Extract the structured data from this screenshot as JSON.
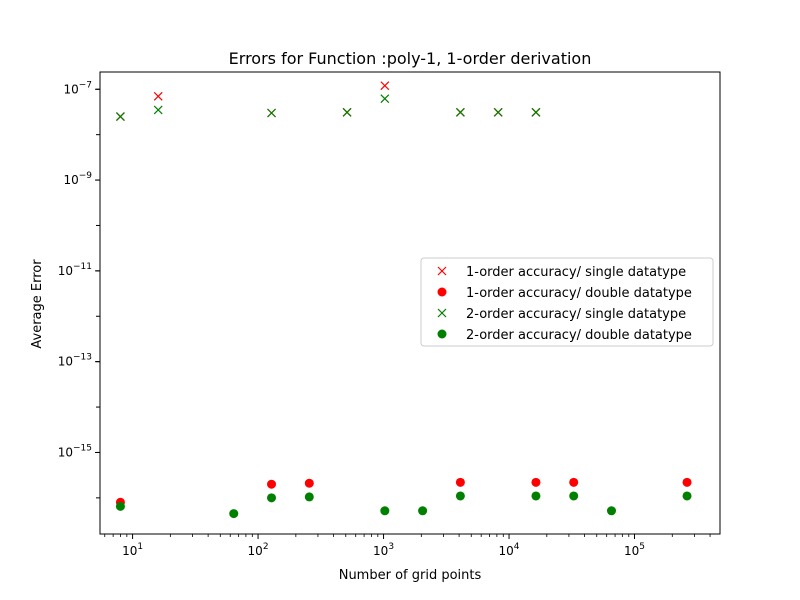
{
  "chart_data": {
    "type": "scatter",
    "title": "Errors for Function :poly-1, 1-order derivation",
    "xlabel": "Number of grid points",
    "ylabel": "Average Error",
    "xscale": "log",
    "yscale": "log",
    "xlim": [
      5.5,
      480000
    ],
    "ylim": [
      1.6e-17,
      2.4e-07
    ],
    "xticks": [
      {
        "value": 10,
        "base": "10",
        "exp": "1"
      },
      {
        "value": 100,
        "base": "10",
        "exp": "2"
      },
      {
        "value": 1000,
        "base": "10",
        "exp": "3"
      },
      {
        "value": 10000,
        "base": "10",
        "exp": "4"
      },
      {
        "value": 100000,
        "base": "10",
        "exp": "5"
      }
    ],
    "yticks": [
      {
        "value": 1e-15,
        "base": "10",
        "exp": "−15"
      },
      {
        "value": 1e-13,
        "base": "10",
        "exp": "−13"
      },
      {
        "value": 1e-11,
        "base": "10",
        "exp": "−11"
      },
      {
        "value": 1e-09,
        "base": "10",
        "exp": "−9"
      },
      {
        "value": 1e-07,
        "base": "10",
        "exp": "−7"
      }
    ],
    "grid": false,
    "legend_position": "center-right",
    "series": [
      {
        "name": "1-order accuracy/ single datatype",
        "marker": "x",
        "color": "#ff0000",
        "points": [
          {
            "x": 8,
            "y": 2.5e-08
          },
          {
            "x": 16,
            "y": 7e-08
          },
          {
            "x": 128,
            "y": 3e-08
          },
          {
            "x": 512,
            "y": 3.1e-08
          },
          {
            "x": 1024,
            "y": 1.2e-07
          },
          {
            "x": 4096,
            "y": 3.1e-08
          },
          {
            "x": 8192,
            "y": 3.1e-08
          },
          {
            "x": 16384,
            "y": 3.1e-08
          }
        ]
      },
      {
        "name": "1-order accuracy/ double datatype",
        "marker": "o",
        "color": "#ff0000",
        "points": [
          {
            "x": 8,
            "y": 8e-17
          },
          {
            "x": 128,
            "y": 2e-16
          },
          {
            "x": 256,
            "y": 2.1e-16
          },
          {
            "x": 4096,
            "y": 2.2e-16
          },
          {
            "x": 16384,
            "y": 2.2e-16
          },
          {
            "x": 32768,
            "y": 2.2e-16
          },
          {
            "x": 262144,
            "y": 2.2e-16
          }
        ]
      },
      {
        "name": "2-order accuracy/ single datatype",
        "marker": "x",
        "color": "#008000",
        "points": [
          {
            "x": 8,
            "y": 2.5e-08
          },
          {
            "x": 16,
            "y": 3.5e-08
          },
          {
            "x": 128,
            "y": 3e-08
          },
          {
            "x": 512,
            "y": 3.1e-08
          },
          {
            "x": 1024,
            "y": 6.2e-08
          },
          {
            "x": 4096,
            "y": 3.1e-08
          },
          {
            "x": 8192,
            "y": 3.1e-08
          },
          {
            "x": 16384,
            "y": 3.1e-08
          }
        ]
      },
      {
        "name": "2-order accuracy/ double datatype",
        "marker": "o",
        "color": "#008000",
        "points": [
          {
            "x": 8,
            "y": 6.5e-17
          },
          {
            "x": 64,
            "y": 4.5e-17
          },
          {
            "x": 128,
            "y": 1e-16
          },
          {
            "x": 256,
            "y": 1.05e-16
          },
          {
            "x": 1024,
            "y": 5.2e-17
          },
          {
            "x": 2048,
            "y": 5.2e-17
          },
          {
            "x": 4096,
            "y": 1.1e-16
          },
          {
            "x": 16384,
            "y": 1.1e-16
          },
          {
            "x": 32768,
            "y": 1.1e-16
          },
          {
            "x": 65536,
            "y": 5.2e-17
          },
          {
            "x": 262144,
            "y": 1.1e-16
          }
        ]
      }
    ]
  }
}
